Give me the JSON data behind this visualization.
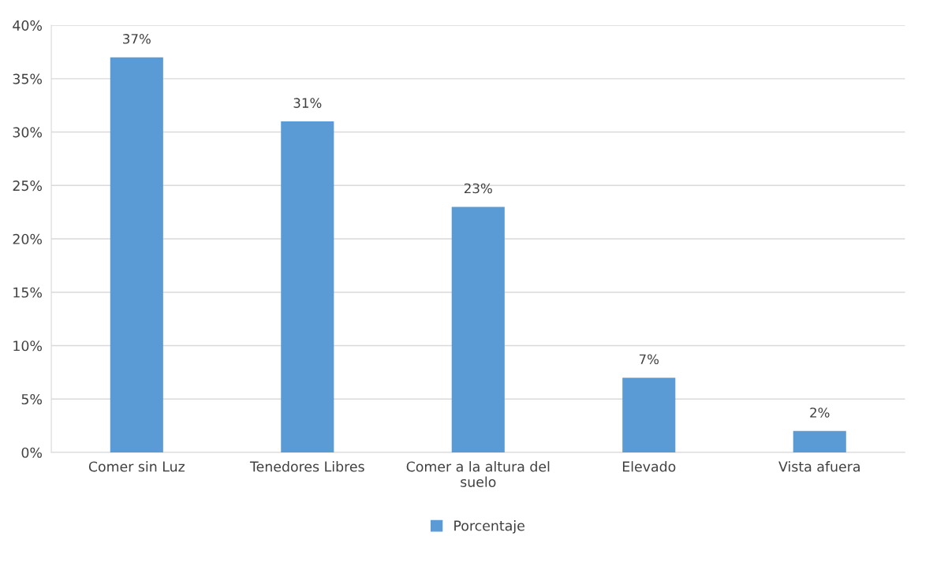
{
  "chart_data": {
    "type": "bar",
    "categories": [
      "Comer sin Luz",
      "Tenedores Libres",
      "Comer a la altura del suelo",
      "Elevado",
      "Vista afuera"
    ],
    "series": [
      {
        "name": "Porcentaje",
        "color": "#5b9bd5",
        "values": [
          37,
          31,
          23,
          7,
          2
        ],
        "value_labels": [
          "37%",
          "31%",
          "23%",
          "7%",
          "2%"
        ]
      }
    ],
    "ylim": [
      0,
      40
    ],
    "yticks": [
      {
        "value": 0,
        "label": "0%"
      },
      {
        "value": 5,
        "label": "5%"
      },
      {
        "value": 10,
        "label": "10%"
      },
      {
        "value": 15,
        "label": "15%"
      },
      {
        "value": 20,
        "label": "20%"
      },
      {
        "value": 25,
        "label": "25%"
      },
      {
        "value": 30,
        "label": "30%"
      },
      {
        "value": 35,
        "label": "35%"
      },
      {
        "value": 40,
        "label": "40%"
      }
    ],
    "grid": "y",
    "legend": "bottom"
  }
}
